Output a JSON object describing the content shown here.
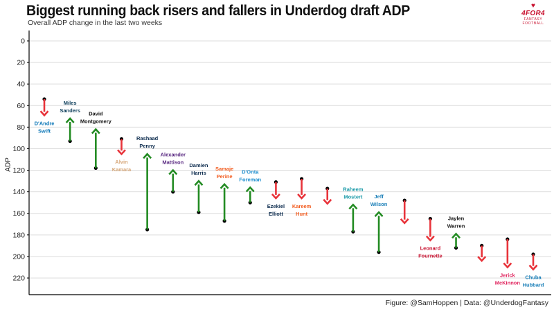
{
  "header": {
    "title": "Biggest running back risers and fallers in Underdog draft ADP",
    "subtitle": "Overall ADP change in the last two weeks"
  },
  "logo": {
    "mark": "♥",
    "word": "4FOR4",
    "sub": "FANTASY FOOTBALL"
  },
  "footer": {
    "caption": "Figure: @SamHoppen | Data: @UnderdogFantasy"
  },
  "colors": {
    "riser": "#228b22",
    "faller": "#e8333a",
    "grid": "#dcdcdc",
    "axis": "#000000"
  },
  "chart_data": {
    "type": "arrow-dumbbell",
    "title": "Biggest running back risers and fallers in Underdog draft ADP",
    "subtitle": "Overall ADP change in the last two weeks",
    "xlabel": "",
    "ylabel": "ADP",
    "ylim": [
      0,
      240
    ],
    "y_inverted": true,
    "yticks": [
      0,
      20,
      40,
      60,
      80,
      100,
      120,
      140,
      160,
      180,
      200,
      220
    ],
    "grid": true,
    "players": [
      {
        "name": "D'Andre Swift",
        "label_lines": [
          "D'Andre",
          "Swift"
        ],
        "from": 54,
        "to": 69,
        "label_color": "#0b76b7",
        "label_side": "below"
      },
      {
        "name": "Miles Sanders",
        "label_lines": [
          "Miles",
          "Sanders"
        ],
        "from": 93,
        "to": 72,
        "label_color": "#0e3f5c",
        "label_side": "above"
      },
      {
        "name": "David Montgomery",
        "label_lines": [
          "David",
          "Montgomery"
        ],
        "from": 118,
        "to": 82,
        "label_color": "#141414",
        "label_side": "above"
      },
      {
        "name": "Alvin Kamara",
        "label_lines": [
          "Alvin",
          "Kamara"
        ],
        "from": 91,
        "to": 105,
        "label_color": "#d7a87a",
        "label_side": "below"
      },
      {
        "name": "Rashaad Penny",
        "label_lines": [
          "Rashaad",
          "Penny"
        ],
        "from": 175,
        "to": 105,
        "label_color": "#0e2d4f",
        "label_side": "above"
      },
      {
        "name": "Alexander Mattison",
        "label_lines": [
          "Alexander",
          "Mattison"
        ],
        "from": 140,
        "to": 120,
        "label_color": "#5a2a82",
        "label_side": "above"
      },
      {
        "name": "Damien Harris",
        "label_lines": [
          "Damien",
          "Harris"
        ],
        "from": 159,
        "to": 130,
        "label_color": "#0e2d4f",
        "label_side": "above"
      },
      {
        "name": "Samaje Perine",
        "label_lines": [
          "Samaje",
          "Perine"
        ],
        "from": 167,
        "to": 133,
        "label_color": "#f25c1f",
        "label_side": "above"
      },
      {
        "name": "D'Onta Foreman",
        "label_lines": [
          "D'Onta",
          "Foreman"
        ],
        "from": 150,
        "to": 136,
        "label_color": "#1f8fcf",
        "label_side": "above"
      },
      {
        "name": "Ezekiel Elliott",
        "label_lines": [
          "Ezekiel",
          "Elliott"
        ],
        "from": 131,
        "to": 146,
        "label_color": "#0e2d4f",
        "label_side": "below"
      },
      {
        "name": "Kareem Hunt",
        "label_lines": [
          "Kareem",
          "Hunt"
        ],
        "from": 128,
        "to": 146,
        "label_color": "#f25c1f",
        "label_side": "below"
      },
      {
        "name": "Unlabeled faller",
        "label_lines": [],
        "from": 137,
        "to": 151,
        "label_color": "#000000",
        "label_side": "below"
      },
      {
        "name": "Raheem Mostert",
        "label_lines": [
          "Raheem",
          "Mostert"
        ],
        "from": 177,
        "to": 152,
        "label_color": "#1a9aa8",
        "label_side": "above"
      },
      {
        "name": "Jeff Wilson",
        "label_lines": [
          "Jeff",
          "Wilson"
        ],
        "from": 196,
        "to": 159,
        "label_color": "#1a7fb8",
        "label_side": "above"
      },
      {
        "name": "Unlabeled faller",
        "label_lines": [],
        "from": 148,
        "to": 169,
        "label_color": "#000000",
        "label_side": "below"
      },
      {
        "name": "Leonard Fournette",
        "label_lines": [
          "Leonard",
          "Fournette"
        ],
        "from": 165,
        "to": 185,
        "label_color": "#c8102e",
        "label_side": "below"
      },
      {
        "name": "Jaylen Warren",
        "label_lines": [
          "Jaylen",
          "Warren"
        ],
        "from": 192,
        "to": 179,
        "label_color": "#111111",
        "label_side": "above"
      },
      {
        "name": "Unlabeled faller",
        "label_lines": [],
        "from": 190,
        "to": 204,
        "label_color": "#000000",
        "label_side": "below"
      },
      {
        "name": "Jerick McKinnon",
        "label_lines": [
          "Jerick",
          "McKinnon"
        ],
        "from": 184,
        "to": 210,
        "label_color": "#e0245e",
        "label_side": "below"
      },
      {
        "name": "Chuba Hubbard",
        "label_lines": [
          "Chuba",
          "Hubbard"
        ],
        "from": 198,
        "to": 212,
        "label_color": "#1a7fb8",
        "label_side": "below"
      }
    ]
  }
}
